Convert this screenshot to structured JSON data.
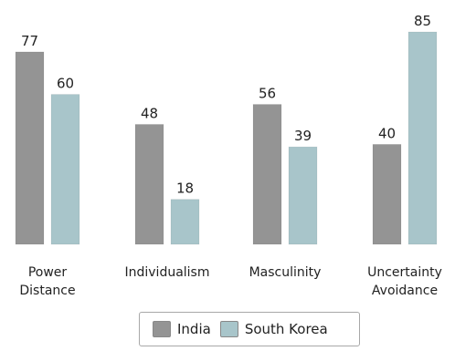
{
  "chart_data": {
    "type": "bar",
    "categories": [
      [
        "Power",
        "Distance"
      ],
      [
        "Individualism"
      ],
      [
        "Masculinity"
      ],
      [
        "Uncertainty",
        "Avoidance"
      ]
    ],
    "series": [
      {
        "name": "India",
        "values": [
          77,
          48,
          56,
          40
        ],
        "color": "#949494"
      },
      {
        "name": "South Korea",
        "values": [
          60,
          18,
          39,
          85
        ],
        "color": "#a8c5ca"
      }
    ],
    "ylim": [
      0,
      85
    ],
    "grid": false,
    "legend": "bottom-center",
    "data_labels": true
  }
}
